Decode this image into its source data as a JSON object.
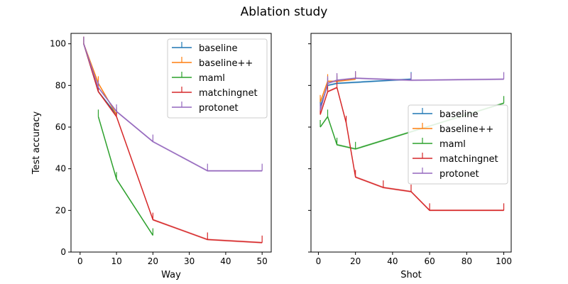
{
  "chart_data": {
    "title": "Ablation study",
    "panels": [
      {
        "type": "line",
        "xlabel": "Way",
        "ylabel": "Test accuracy",
        "xlim": [
          -2.5,
          52.5
        ],
        "ylim": [
          0,
          105
        ],
        "xticks": [
          "0",
          "10",
          "20",
          "30",
          "40",
          "50"
        ],
        "yticks": [
          "0",
          "20",
          "40",
          "60",
          "80",
          "100"
        ],
        "legend": "top-right",
        "series": [
          {
            "name": "baseline",
            "color": "#1f77b4",
            "points": [
              [
                1,
                100
              ],
              [
                5,
                77
              ],
              [
                10,
                66
              ]
            ]
          },
          {
            "name": "baseline++",
            "color": "#ff7f0e",
            "points": [
              [
                1,
                100
              ],
              [
                5,
                81
              ],
              [
                10,
                66
              ]
            ]
          },
          {
            "name": "maml",
            "color": "#2ca02c",
            "points": [
              [
                5,
                65
              ],
              [
                10,
                35
              ],
              [
                20,
                8
              ]
            ]
          },
          {
            "name": "matchingnet",
            "color": "#d62728",
            "points": [
              [
                1,
                100
              ],
              [
                5,
                77
              ],
              [
                10,
                65
              ],
              [
                20,
                15.5
              ],
              [
                35,
                6
              ],
              [
                50,
                4.5
              ]
            ]
          },
          {
            "name": "protonet",
            "color": "#9467bd",
            "points": [
              [
                1,
                100
              ],
              [
                5,
                79
              ],
              [
                10,
                67.5
              ],
              [
                20,
                53
              ],
              [
                35,
                39
              ],
              [
                50,
                39
              ]
            ]
          }
        ]
      },
      {
        "type": "line",
        "xlabel": "Shot",
        "ylabel": "",
        "xlim": [
          -4,
          104
        ],
        "ylim": [
          0,
          105
        ],
        "xticks": [
          "0",
          "20",
          "40",
          "60",
          "80",
          "100"
        ],
        "yticks": [],
        "legend": "center-right",
        "series": [
          {
            "name": "baseline",
            "color": "#1f77b4",
            "points": [
              [
                1,
                70
              ],
              [
                5,
                80
              ],
              [
                10,
                81
              ],
              [
                50,
                83
              ]
            ]
          },
          {
            "name": "baseline++",
            "color": "#ff7f0e",
            "points": [
              [
                1,
                72
              ],
              [
                5,
                82
              ],
              [
                10,
                82
              ],
              [
                20,
                83
              ]
            ]
          },
          {
            "name": "maml",
            "color": "#2ca02c",
            "points": [
              [
                1,
                60
              ],
              [
                5,
                65
              ],
              [
                10,
                51.5
              ],
              [
                20,
                49.5
              ],
              [
                100,
                71.5
              ]
            ]
          },
          {
            "name": "matchingnet",
            "color": "#d62728",
            "points": [
              [
                1,
                66
              ],
              [
                5,
                77
              ],
              [
                10,
                79
              ],
              [
                15,
                62
              ],
              [
                20,
                36
              ],
              [
                35,
                31
              ],
              [
                50,
                29
              ],
              [
                60,
                20
              ],
              [
                100,
                20
              ]
            ]
          },
          {
            "name": "protonet",
            "color": "#9467bd",
            "points": [
              [
                1,
                68
              ],
              [
                5,
                81
              ],
              [
                10,
                82.5
              ],
              [
                20,
                83.5
              ],
              [
                50,
                82.5
              ],
              [
                100,
                83
              ]
            ]
          }
        ]
      }
    ]
  }
}
